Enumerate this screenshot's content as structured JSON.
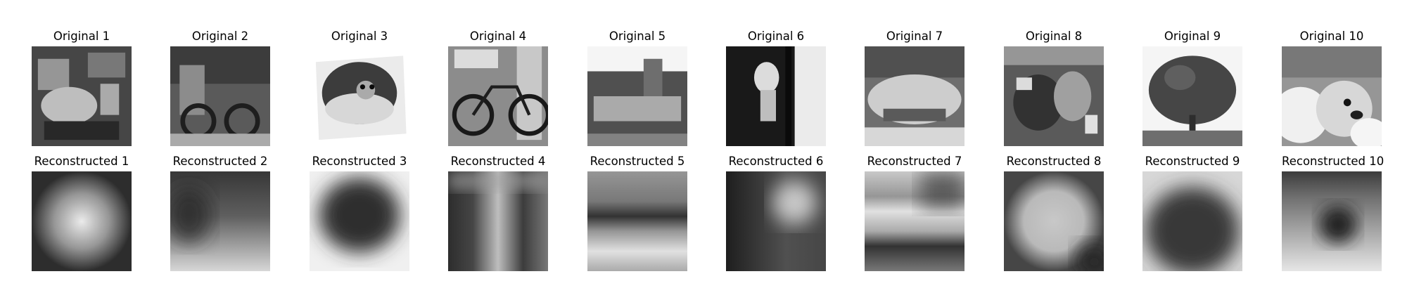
{
  "rows": [
    {
      "kind": "original",
      "panels": [
        {
          "title": "Original 1",
          "image": "grayscale-photo-cluttered-scene"
        },
        {
          "title": "Original 2",
          "image": "grayscale-photo-bicycle-wheels"
        },
        {
          "title": "Original 3",
          "image": "grayscale-photo-animal-in-bowl-tilted"
        },
        {
          "title": "Original 4",
          "image": "grayscale-photo-bicycle-side-view"
        },
        {
          "title": "Original 5",
          "image": "grayscale-photo-building-castle"
        },
        {
          "title": "Original 6",
          "image": "grayscale-photo-dark-with-white-figure"
        },
        {
          "title": "Original 7",
          "image": "grayscale-photo-car-front"
        },
        {
          "title": "Original 8",
          "image": "grayscale-photo-motorbike-rider"
        },
        {
          "title": "Original 9",
          "image": "grayscale-photo-tree"
        },
        {
          "title": "Original 10",
          "image": "grayscale-photo-dog-on-snow"
        }
      ]
    },
    {
      "kind": "reconstructed",
      "panels": [
        {
          "title": "Reconstructed 1",
          "image": "blurry-bright-center-blob"
        },
        {
          "title": "Reconstructed 2",
          "image": "blurry-dark-top-light-bottom"
        },
        {
          "title": "Reconstructed 3",
          "image": "blurry-dark-oval-center"
        },
        {
          "title": "Reconstructed 4",
          "image": "blurry-dark-vertical-sides"
        },
        {
          "title": "Reconstructed 5",
          "image": "blurry-horizontal-bands"
        },
        {
          "title": "Reconstructed 6",
          "image": "blurry-dark-left-light-right"
        },
        {
          "title": "Reconstructed 7",
          "image": "blurry-light-horizontal-bands"
        },
        {
          "title": "Reconstructed 8",
          "image": "blurry-light-center-dark-corners"
        },
        {
          "title": "Reconstructed 9",
          "image": "blurry-dark-dome-center"
        },
        {
          "title": "Reconstructed 10",
          "image": "blurry-dark-spot-center"
        }
      ]
    }
  ]
}
